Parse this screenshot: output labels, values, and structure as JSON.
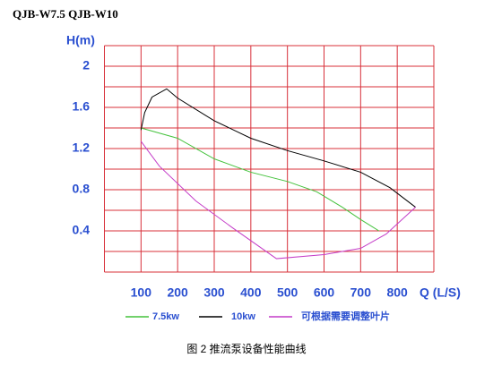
{
  "chart_data": {
    "type": "line",
    "title": "QJB-W7.5  QJB-W10",
    "y_label": "H(m)",
    "x_label": "Q (L/S)",
    "caption": "图 2 推流泵设备性能曲线",
    "xlim": [
      0,
      900
    ],
    "ylim": [
      0,
      2.2
    ],
    "xticks": [
      100,
      200,
      300,
      400,
      500,
      600,
      700,
      800
    ],
    "yticks": [
      0.4,
      0.8,
      1.2,
      1.6,
      2.0
    ],
    "xgrid": [
      0,
      100,
      200,
      300,
      400,
      500,
      600,
      700,
      800,
      900
    ],
    "ygrid": [
      0,
      0.2,
      0.4,
      0.6,
      0.8,
      1.0,
      1.2,
      1.4,
      1.6,
      1.8,
      2.0,
      2.2
    ],
    "grid_color": "#d8303a",
    "series": [
      {
        "name": "7.5kw",
        "color": "#44c23c",
        "x": [
          100,
          200,
          300,
          400,
          500,
          580,
          650,
          700,
          750
        ],
        "values": [
          1.4,
          1.3,
          1.1,
          0.97,
          0.88,
          0.78,
          0.63,
          0.51,
          0.4
        ]
      },
      {
        "name": "10kw",
        "color": "#000000",
        "x": [
          100,
          110,
          130,
          170,
          200,
          300,
          400,
          500,
          600,
          700,
          780,
          850
        ],
        "values": [
          1.38,
          1.55,
          1.7,
          1.78,
          1.69,
          1.47,
          1.3,
          1.18,
          1.08,
          0.97,
          0.82,
          0.63
        ]
      },
      {
        "name": "可根据需要调整叶片",
        "color": "#c43cc8",
        "x": [
          100,
          150,
          250,
          350,
          470,
          600,
          700,
          770,
          850
        ],
        "values": [
          1.27,
          1.03,
          0.69,
          0.43,
          0.13,
          0.17,
          0.23,
          0.37,
          0.63
        ]
      }
    ]
  }
}
